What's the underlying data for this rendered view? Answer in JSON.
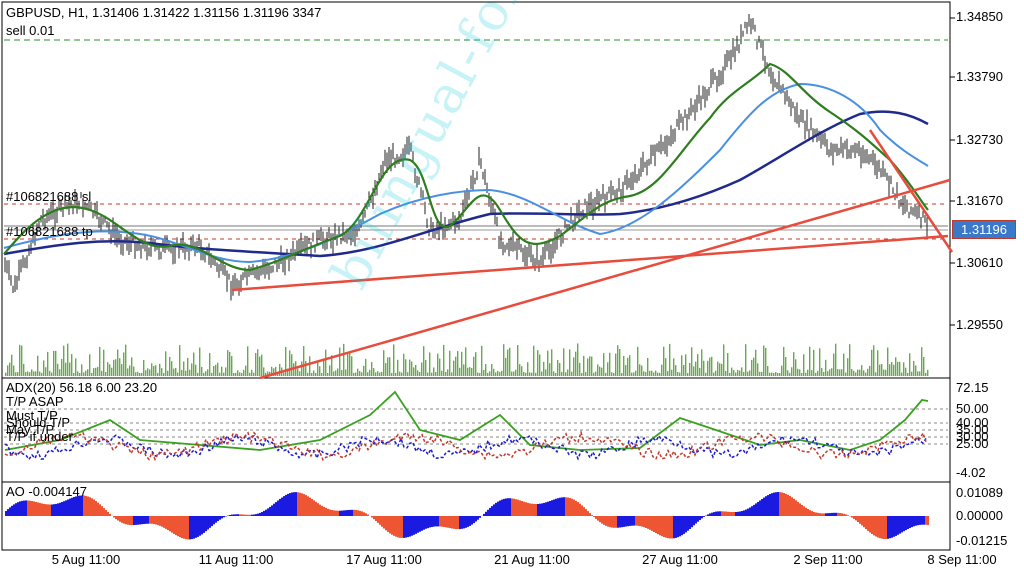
{
  "header": {
    "symbol_info": "GBPUSD, H1, 1.31406 1.31422 1.31156 1.31196 3347",
    "order_label": "sell 0.01",
    "sl_label": "#106821688 sl",
    "tp_label": "#106821688 tp"
  },
  "price_axis": {
    "labels": [
      "1.34850",
      "1.33790",
      "1.32730",
      "1.31670",
      "1.30610",
      "1.29550"
    ],
    "current_price": "1.31196"
  },
  "adx_panel": {
    "title": "ADX(20) 56.18 6.00 23.20",
    "tp_asap": "T/P ASAP",
    "must_tp": "Must T/P",
    "overlap1": "Should T/P",
    "overlap2": "May T/P",
    "tp_under": "T/P if under",
    "axis_labels": [
      "72.15",
      "50.00",
      "40.00",
      "35.00",
      "30.00",
      "25.00",
      "-4.02"
    ]
  },
  "ao_panel": {
    "title": "AO -0.004147",
    "axis_labels": [
      "0.01089",
      "0.00000",
      "-0.01215"
    ]
  },
  "time_axis": [
    "5 Aug 11:00",
    "11 Aug 11:00",
    "17 Aug 11:00",
    "21 Aug 11:00",
    "27 Aug 11:00",
    "2 Sep 11:00",
    "8 Sep 11:00"
  ],
  "watermark": "bilingual-forex"
}
